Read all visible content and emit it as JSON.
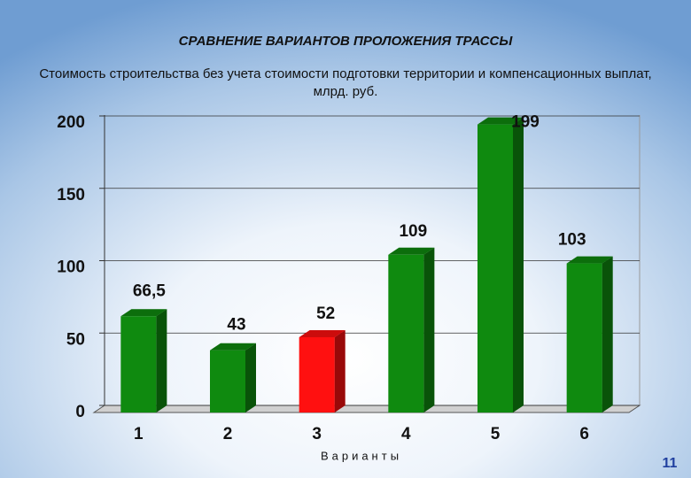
{
  "chart_data": {
    "type": "bar3d",
    "title": "СРАВНЕНИЕ ВАРИАНТОВ ПРОЛОЖЕНИЯ ТРАССЫ",
    "subtitle": "Стоимость строительства без учета стоимости подготовки территории и компенсационных выплат, млрд. руб.",
    "x_label": "Варианты",
    "categories": [
      "1",
      "2",
      "3",
      "4",
      "5",
      "6"
    ],
    "values": [
      66.5,
      43,
      52,
      109,
      199,
      103
    ],
    "value_labels": [
      "66,5",
      "43",
      "52",
      "109",
      "199",
      "103"
    ],
    "colors": [
      "#0f8a0f",
      "#0f8a0f",
      "#ff1010",
      "#0f8a0f",
      "#0f8a0f",
      "#0f8a0f"
    ],
    "ylim": [
      0,
      200
    ],
    "yticks": [
      0,
      50,
      100,
      150,
      200
    ],
    "grid": true
  },
  "slide": {
    "page_number": "11"
  }
}
